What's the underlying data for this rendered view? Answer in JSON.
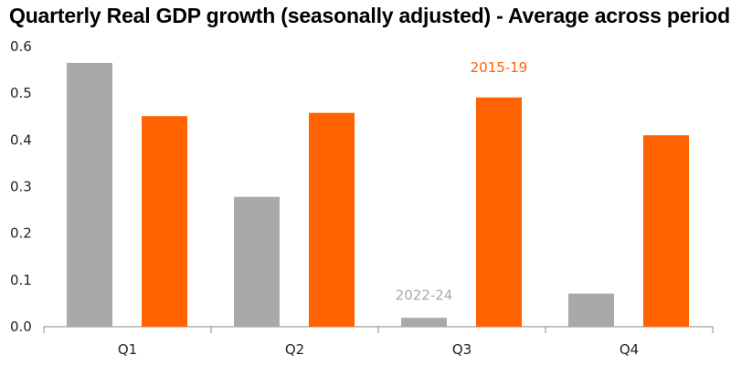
{
  "chart_data": {
    "type": "bar",
    "title": "Quarterly Real GDP growth (seasonally adjusted) - Average across period",
    "categories": [
      "Q1",
      "Q2",
      "Q3",
      "Q4"
    ],
    "series": [
      {
        "name": "2022-24",
        "color": "#a9a9a9",
        "values": [
          0.565,
          0.278,
          0.019,
          0.071
        ]
      },
      {
        "name": "2015-19",
        "color": "#ff6200",
        "values": [
          0.451,
          0.458,
          0.491,
          0.41
        ]
      }
    ],
    "ylim": [
      0.0,
      0.6
    ],
    "yticks": [
      "0.0",
      "0.1",
      "0.2",
      "0.3",
      "0.4",
      "0.5",
      "0.6"
    ],
    "grid": false,
    "xlabel": "",
    "ylabel": "",
    "annotations": [
      {
        "text": "2015-19",
        "series": "2015-19",
        "color": "#ff6200"
      },
      {
        "text": "2022-24",
        "series": "2022-24",
        "color": "#a9a9a9"
      }
    ]
  }
}
